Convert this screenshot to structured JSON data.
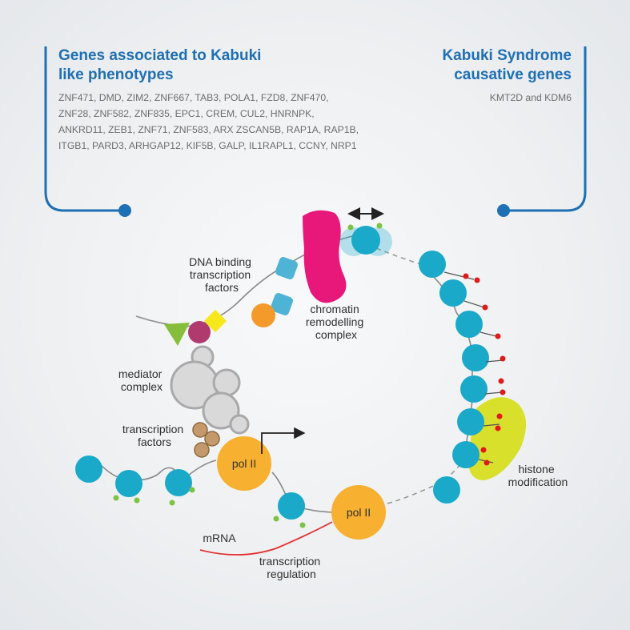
{
  "left_panel": {
    "title_line1": "Genes associated to Kabuki",
    "title_line2": "like phenotypes",
    "genes_lines": [
      "ZNF471, DMD, ZIM2, ZNF667, TAB3, POLA1, FZD8, ZNF470,",
      "ZNF28, ZNF582, ZNF835, EPC1, CREM, CUL2, HNRNPK,",
      "ANKRD11, ZEB1, ZNF71, ZNF583, ARX ZSCAN5B, RAP1A, RAP1B,",
      "ITGB1, PARD3, ARHGAP12, KIF5B, GALP, IL1RAPL1, CCNY, NRP1"
    ]
  },
  "right_panel": {
    "title_line1": "Kabuki Syndrome",
    "title_line2": "causative genes",
    "genes": "KMT2D and KDM6"
  },
  "labels": {
    "dna_binding": [
      "DNA binding",
      "transcription",
      "factors"
    ],
    "chromatin": [
      "chromatin",
      "remodelling",
      "complex"
    ],
    "mediator": [
      "mediator",
      "complex"
    ],
    "transcription_factors": [
      "transcription",
      "factors"
    ],
    "pol2_a": "pol II",
    "pol2_b": "pol II",
    "histone": [
      "histone",
      "modification"
    ],
    "mrna": "mRNA",
    "transcription_regulation": [
      "transcription",
      "regulation"
    ]
  },
  "colors": {
    "accent_blue": "#1f6fb4",
    "nucleosome": "#1aa9c9",
    "pol2": "#f7b030",
    "remodeller": "#e8177a",
    "histone_patch": "#d8e02c",
    "mark_green": "#7cc243",
    "mark_red": "#e01a1a",
    "mediator_grey": "#d9d9d9",
    "tf_brown": "#c49a6c",
    "mrna_red": "#e53030"
  }
}
